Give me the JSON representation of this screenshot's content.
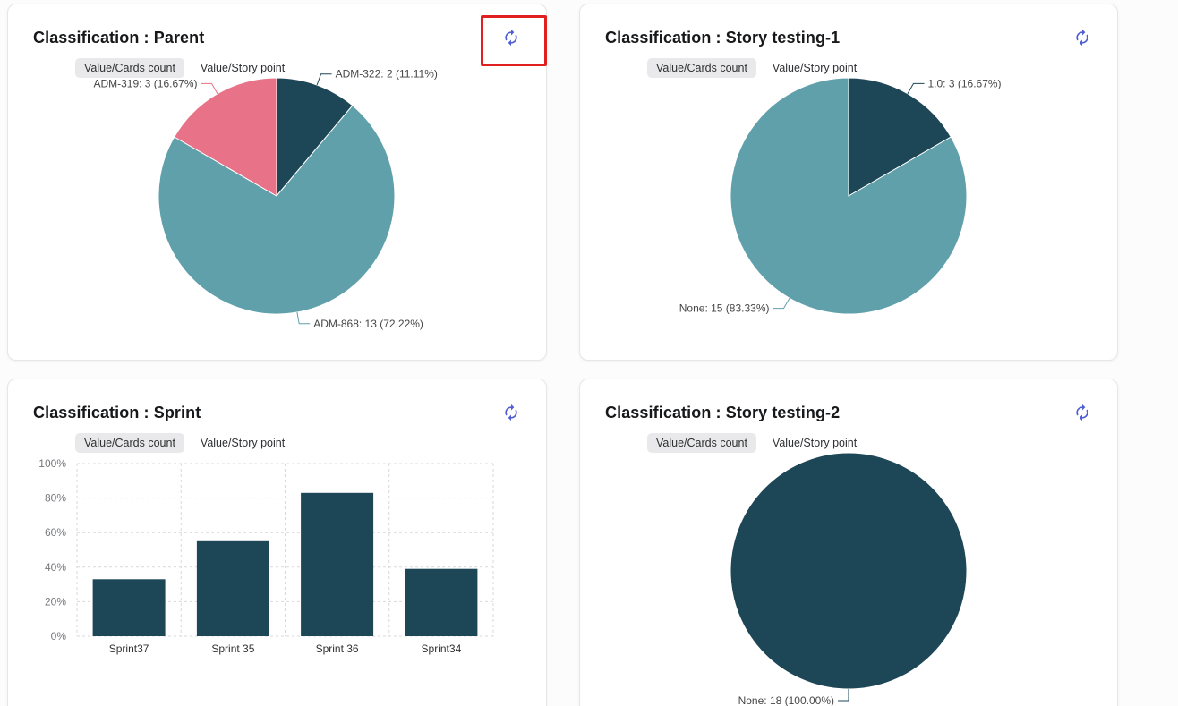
{
  "theme": {
    "refresh_icon_color": "#4f5ed3",
    "highlight_color": "#e02020",
    "dark_slice_color": "#1d4657",
    "teal_slice_color": "#5fa0ab",
    "pink_slice_color": "#e87287",
    "active_tab_bg": "#e9e9ec"
  },
  "icons": {
    "refresh": "circular-arrows-refresh"
  },
  "cards": [
    {
      "title": "Classification : Parent",
      "highlighted": true,
      "tabs": [
        {
          "label": "Value/Cards count",
          "active": true
        },
        {
          "label": "Value/Story point",
          "active": false
        }
      ]
    },
    {
      "title": "Classification : Story testing-1",
      "highlighted": false,
      "tabs": [
        {
          "label": "Value/Cards count",
          "active": true
        },
        {
          "label": "Value/Story point",
          "active": false
        }
      ]
    },
    {
      "title": "Classification : Sprint",
      "highlighted": false,
      "tabs": [
        {
          "label": "Value/Cards count",
          "active": true
        },
        {
          "label": "Value/Story point",
          "active": false
        }
      ]
    },
    {
      "title": "Classification : Story testing-2",
      "highlighted": false,
      "tabs": [
        {
          "label": "Value/Cards count",
          "active": true
        },
        {
          "label": "Value/Story point",
          "active": false
        }
      ]
    }
  ],
  "chart_data": [
    {
      "type": "pie",
      "card": "Classification : Parent",
      "start_angle": "top",
      "direction": "clockwise",
      "slices": [
        {
          "name": "ADM-322",
          "value": 2,
          "pct": 11.11,
          "label": "ADM-322: 2 (11.11%)",
          "color": "#1d4657"
        },
        {
          "name": "ADM-868",
          "value": 13,
          "pct": 72.22,
          "label": "ADM-868: 13 (72.22%)",
          "color": "#5fa0ab"
        },
        {
          "name": "ADM-319",
          "value": 3,
          "pct": 16.67,
          "label": "ADM-319: 3 (16.67%)",
          "color": "#e87287"
        }
      ]
    },
    {
      "type": "pie",
      "card": "Classification : Story testing-1",
      "start_angle": "top",
      "direction": "clockwise",
      "slices": [
        {
          "name": "1.0",
          "value": 3,
          "pct": 16.67,
          "label": "1.0: 3 (16.67%)",
          "color": "#1d4657"
        },
        {
          "name": "None",
          "value": 15,
          "pct": 83.33,
          "label": "None: 15 (83.33%)",
          "color": "#5fa0ab"
        }
      ]
    },
    {
      "type": "bar",
      "card": "Classification : Sprint",
      "categories": [
        "Sprint37",
        "Sprint 35",
        "Sprint 36",
        "Sprint34"
      ],
      "values": [
        33,
        55,
        83,
        39
      ],
      "ylim": [
        0,
        100
      ],
      "yticks": [
        "0%",
        "20%",
        "40%",
        "60%",
        "80%",
        "100%"
      ],
      "bar_color": "#1d4657",
      "grid": "dashed"
    },
    {
      "type": "pie",
      "card": "Classification : Story testing-2",
      "start_angle": "top",
      "direction": "clockwise",
      "slices": [
        {
          "name": "None",
          "value": 18,
          "pct": 100.0,
          "label": "None: 18 (100.00%)",
          "color": "#1d4657"
        }
      ]
    }
  ]
}
